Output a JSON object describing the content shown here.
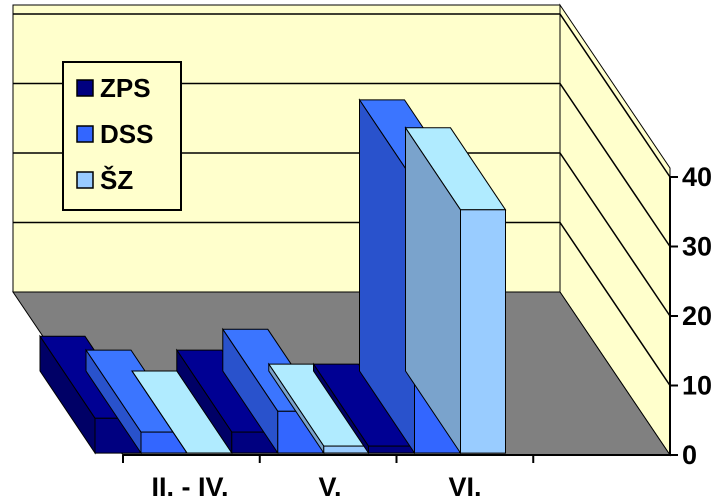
{
  "chart_data": {
    "type": "bar",
    "style": "3d-clustered",
    "categories": [
      "II. - IV.",
      "V.",
      "VI."
    ],
    "series": [
      {
        "name": "ZPS",
        "values": [
          5,
          3,
          1
        ],
        "color": "#000080"
      },
      {
        "name": "DSS",
        "values": [
          3,
          6,
          39
        ],
        "color": "#3366FF"
      },
      {
        "name": "ŠZ",
        "values": [
          0,
          1,
          35
        ],
        "color": "#99CCFF"
      }
    ],
    "y_ticks": [
      "0",
      "10",
      "20",
      "30",
      "40"
    ],
    "ylim": [
      0,
      40
    ],
    "grid": true,
    "legend_position": "top-left",
    "colors": {
      "back_wall": "#FFFFCC",
      "floor": "#808080"
    }
  }
}
